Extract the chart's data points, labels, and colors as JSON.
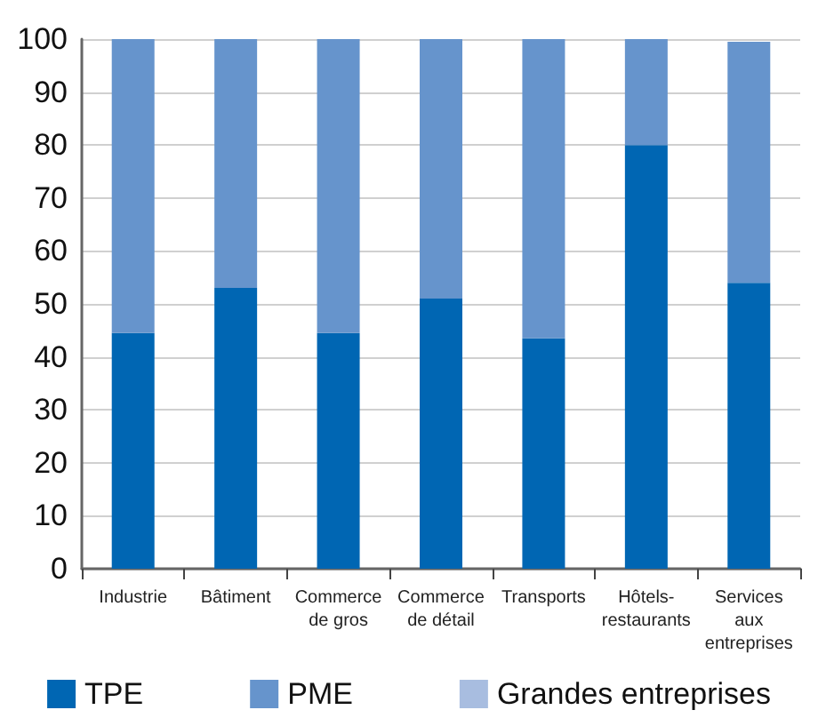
{
  "chart_data": {
    "type": "bar",
    "stacked": true,
    "categories": [
      "Industrie",
      "Bâtiment",
      "Commerce de gros",
      "Commerce de détail",
      "Transports",
      "Hôtels-restaurants",
      "Services aux entreprises"
    ],
    "series": [
      {
        "name": "TPE",
        "color": "#0066b3",
        "values": [
          44.5,
          53,
          44.5,
          51,
          43.5,
          80,
          54
        ]
      },
      {
        "name": "PME",
        "color": "#6694cc",
        "values": [
          55.5,
          47,
          55.5,
          49,
          56.5,
          20,
          45.5
        ]
      },
      {
        "name": "Grandes entreprises",
        "color": "#a8bde0",
        "values": [
          0,
          0,
          0,
          0,
          0,
          0,
          0
        ]
      }
    ],
    "ylim": [
      0,
      100
    ],
    "yticks": [
      0,
      10,
      20,
      30,
      40,
      50,
      60,
      70,
      80,
      90,
      100
    ],
    "grid": "y",
    "legend": "bottom"
  }
}
